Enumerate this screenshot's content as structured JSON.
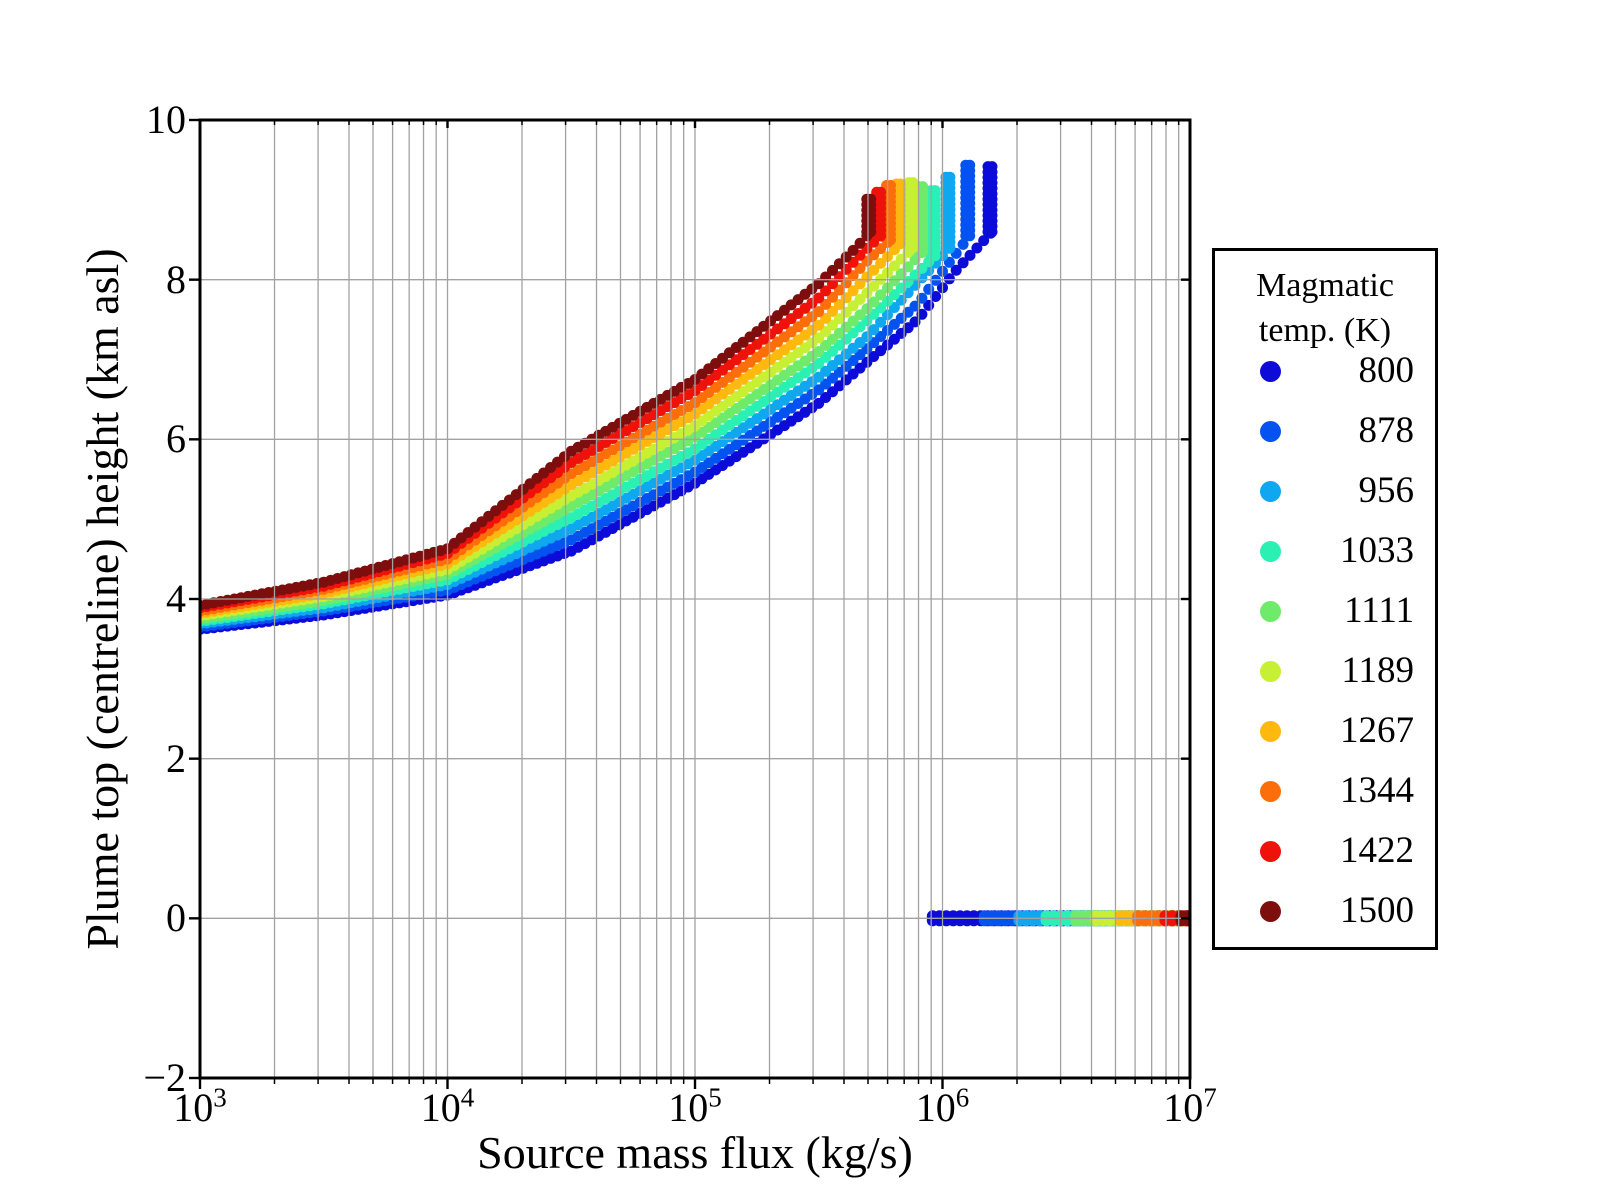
{
  "chart_data": {
    "type": "scatter",
    "title": "",
    "xlabel": "Source mass flux (kg/s)",
    "ylabel": "Plume top (centreline) height (km asl)",
    "x_scale": "log",
    "xlim": [
      1000,
      10000000
    ],
    "ylim": [
      -2,
      10
    ],
    "x_tick_base": "10",
    "x_tick_exponents": [
      3,
      4,
      5,
      6,
      7
    ],
    "y_ticks": [
      10,
      8,
      6,
      4,
      2,
      0,
      -2
    ],
    "y_tick_labels": [
      "10",
      "8",
      "6",
      "4",
      "2",
      "0",
      "−2"
    ],
    "grid": {
      "horizontal_at": [
        0,
        2,
        4,
        6,
        8
      ],
      "vertical": "log decades with minor lines at 2-9 per decade",
      "color": "#a2a2a2",
      "on_top_of_data": true
    },
    "marker": "circle",
    "series_note": "Each series: plume rise curve h(km) vs log10 mass flux, a near-vertical tip column at its maximum flux, and collapsed-column points at h=0 from collapse_start_log10 to 7.0. Series drawn coolest first (warm colors on top).",
    "collapse_end_log10": 7.0,
    "collapse_height_km": 0,
    "series": [
      {
        "temperature_K": 800,
        "color": "#0D0BD8",
        "rise_logx_km": [
          [
            3.0,
            3.62
          ],
          [
            3.5,
            3.8
          ],
          [
            4.0,
            4.05
          ],
          [
            4.5,
            4.6
          ],
          [
            5.0,
            5.45
          ],
          [
            5.5,
            6.45
          ],
          [
            5.7,
            6.98
          ],
          [
            5.9,
            7.5
          ],
          [
            6.05,
            8.1
          ],
          [
            6.2,
            8.6
          ]
        ],
        "tip_top_km": 9.45,
        "collapse_start_log10": 5.96
      },
      {
        "temperature_K": 878,
        "color": "#0453F1",
        "rise_logx_km": [
          [
            3.0,
            3.65
          ],
          [
            3.5,
            3.85
          ],
          [
            4.0,
            4.11
          ],
          [
            4.5,
            4.74
          ],
          [
            5.0,
            5.59
          ],
          [
            5.5,
            6.62
          ],
          [
            5.7,
            7.15
          ],
          [
            5.9,
            7.7
          ],
          [
            6.11,
            8.55
          ]
        ],
        "tip_top_km": 9.45,
        "collapse_start_log10": 6.17
      },
      {
        "temperature_K": 956,
        "color": "#0FA8F0",
        "rise_logx_km": [
          [
            3.0,
            3.69
          ],
          [
            3.5,
            3.89
          ],
          [
            4.0,
            4.18
          ],
          [
            4.5,
            4.88
          ],
          [
            5.0,
            5.74
          ],
          [
            5.5,
            6.78
          ],
          [
            5.7,
            7.3
          ],
          [
            6.03,
            8.4
          ]
        ],
        "tip_top_km": 9.3,
        "collapse_start_log10": 6.31
      },
      {
        "temperature_K": 1033,
        "color": "#2BF0B4",
        "rise_logx_km": [
          [
            3.0,
            3.72
          ],
          [
            3.5,
            3.94
          ],
          [
            4.0,
            4.24
          ],
          [
            4.5,
            5.02
          ],
          [
            5.0,
            5.88
          ],
          [
            5.5,
            6.95
          ],
          [
            5.7,
            7.5
          ],
          [
            5.97,
            8.3
          ]
        ],
        "tip_top_km": 9.15,
        "collapse_start_log10": 6.42
      },
      {
        "temperature_K": 1111,
        "color": "#6FEB6C",
        "rise_logx_km": [
          [
            3.0,
            3.75
          ],
          [
            3.5,
            3.98
          ],
          [
            4.0,
            4.31
          ],
          [
            4.5,
            5.16
          ],
          [
            5.0,
            6.03
          ],
          [
            5.5,
            7.1
          ],
          [
            5.7,
            7.65
          ],
          [
            5.92,
            8.35
          ]
        ],
        "tip_top_km": 9.2,
        "collapse_start_log10": 6.54
      },
      {
        "temperature_K": 1189,
        "color": "#C7EF34",
        "rise_logx_km": [
          [
            3.0,
            3.79
          ],
          [
            3.5,
            4.03
          ],
          [
            4.0,
            4.37
          ],
          [
            4.5,
            5.29
          ],
          [
            5.0,
            6.17
          ],
          [
            5.5,
            7.27
          ],
          [
            5.7,
            7.85
          ],
          [
            5.88,
            8.4
          ]
        ],
        "tip_top_km": 9.25,
        "collapse_start_log10": 6.62
      },
      {
        "temperature_K": 1267,
        "color": "#FFB80E",
        "rise_logx_km": [
          [
            3.0,
            3.82
          ],
          [
            3.5,
            4.07
          ],
          [
            4.0,
            4.44
          ],
          [
            4.5,
            5.43
          ],
          [
            5.0,
            6.32
          ],
          [
            5.5,
            7.43
          ],
          [
            5.7,
            8.05
          ],
          [
            5.83,
            8.45
          ]
        ],
        "tip_top_km": 9.25,
        "collapse_start_log10": 6.72
      },
      {
        "temperature_K": 1344,
        "color": "#FB6E0A",
        "rise_logx_km": [
          [
            3.0,
            3.85
          ],
          [
            3.5,
            4.12
          ],
          [
            4.0,
            4.5
          ],
          [
            4.5,
            5.57
          ],
          [
            5.0,
            6.46
          ],
          [
            5.5,
            7.6
          ],
          [
            5.7,
            8.25
          ],
          [
            5.79,
            8.5
          ]
        ],
        "tip_top_km": 9.2,
        "collapse_start_log10": 6.79
      },
      {
        "temperature_K": 1422,
        "color": "#EF120A",
        "rise_logx_km": [
          [
            3.0,
            3.89
          ],
          [
            3.5,
            4.16
          ],
          [
            4.0,
            4.57
          ],
          [
            4.5,
            5.71
          ],
          [
            5.0,
            6.61
          ],
          [
            5.5,
            7.77
          ],
          [
            5.68,
            8.35
          ],
          [
            5.75,
            8.55
          ]
        ],
        "tip_top_km": 9.15,
        "collapse_start_log10": 6.9
      },
      {
        "temperature_K": 1500,
        "color": "#7E0E0E",
        "rise_logx_km": [
          [
            3.0,
            3.92
          ],
          [
            3.5,
            4.21
          ],
          [
            4.0,
            4.63
          ],
          [
            4.5,
            5.85
          ],
          [
            5.0,
            6.75
          ],
          [
            5.5,
            7.95
          ],
          [
            5.65,
            8.4
          ],
          [
            5.71,
            8.6
          ]
        ],
        "tip_top_km": 9.05,
        "collapse_start_log10": 6.965
      }
    ]
  },
  "legend": {
    "title_lines": [
      "Magmatic",
      "temp. (K)"
    ],
    "items": [
      {
        "label": "800",
        "color": "#0D0BD8"
      },
      {
        "label": "878",
        "color": "#0453F1"
      },
      {
        "label": "956",
        "color": "#0FA8F0"
      },
      {
        "label": "1033",
        "color": "#2BF0B4"
      },
      {
        "label": "1111",
        "color": "#6FEB6C"
      },
      {
        "label": "1189",
        "color": "#C7EF34"
      },
      {
        "label": "1267",
        "color": "#FFB80E"
      },
      {
        "label": "1344",
        "color": "#FB6E0A"
      },
      {
        "label": "1422",
        "color": "#EF120A"
      },
      {
        "label": "1500",
        "color": "#7E0E0E"
      }
    ]
  },
  "style_colors": {
    "axis_spine": "#000000",
    "gridline": "#a2a2a2",
    "background": "#ffffff"
  }
}
